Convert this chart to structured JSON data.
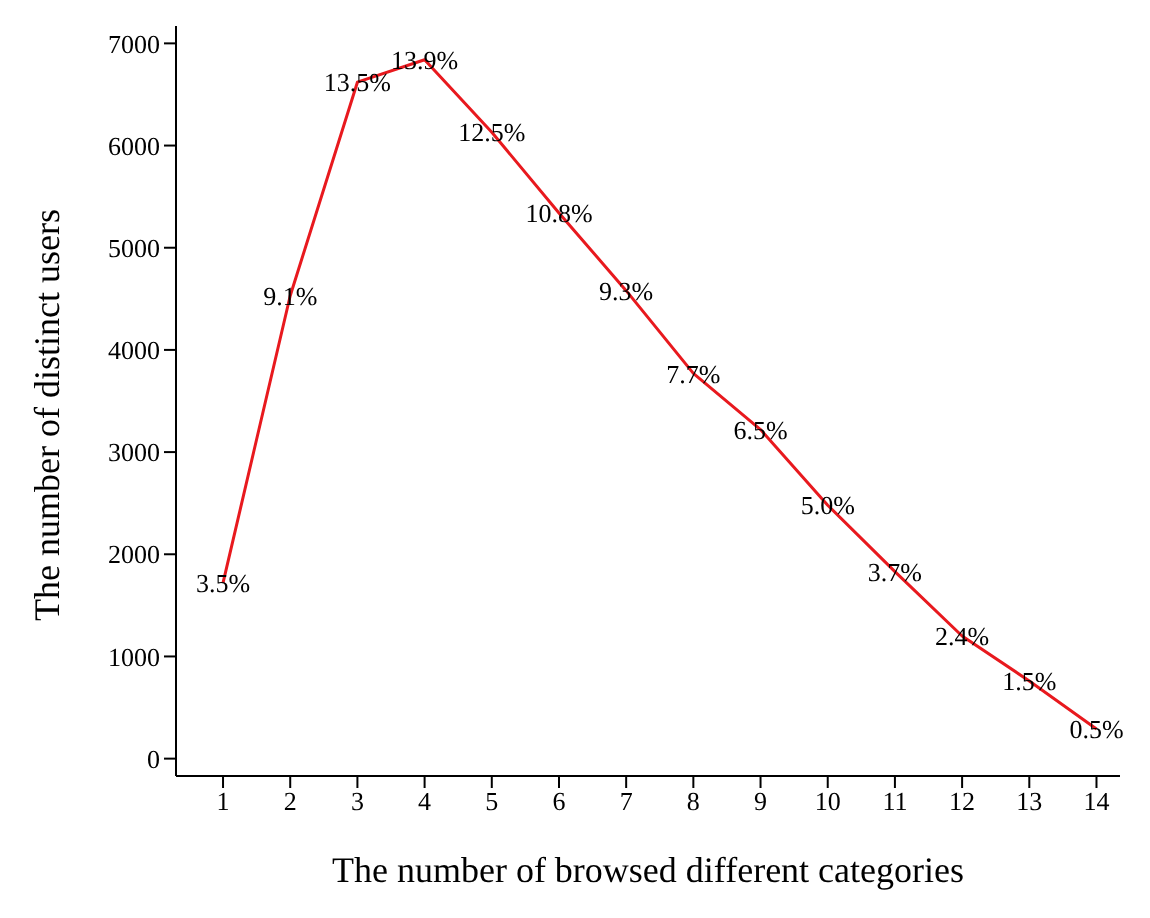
{
  "chart_data": {
    "type": "line",
    "xlabel": "The number of browsed different categories",
    "ylabel": "The number of distinct users",
    "x": [
      1,
      2,
      3,
      4,
      5,
      6,
      7,
      8,
      9,
      10,
      11,
      12,
      13,
      14
    ],
    "series": [
      {
        "color": "#e8191e",
        "values": [
          1720,
          4530,
          6620,
          6840,
          6130,
          5340,
          4580,
          3770,
          3220,
          2480,
          1830,
          1200,
          760,
          290
        ]
      }
    ],
    "xlim": [
      0.3,
      14.35
    ],
    "xticks": [
      1,
      2,
      3,
      4,
      5,
      6,
      7,
      8,
      9,
      10,
      11,
      12,
      13,
      14
    ],
    "ylim": [
      -170,
      7170
    ],
    "yticks": [
      0,
      1000,
      2000,
      3000,
      4000,
      5000,
      6000,
      7000
    ],
    "grid": false,
    "legend": false,
    "marker": "none",
    "line_style": "solid",
    "annotations": [
      {
        "text": "3.5%",
        "x": 1,
        "y": 1720
      },
      {
        "text": "9.1%",
        "x": 2,
        "y": 4530
      },
      {
        "text": "13.5%",
        "x": 3,
        "y": 6620
      },
      {
        "text": "13.9%",
        "x": 4,
        "y": 6840
      },
      {
        "text": "12.5%",
        "x": 5,
        "y": 6130
      },
      {
        "text": "10.8%",
        "x": 6,
        "y": 5340
      },
      {
        "text": "9.3%",
        "x": 7,
        "y": 4580
      },
      {
        "text": "7.7%",
        "x": 8,
        "y": 3770
      },
      {
        "text": "6.5%",
        "x": 9,
        "y": 3220
      },
      {
        "text": "5.0%",
        "x": 10,
        "y": 2480
      },
      {
        "text": "3.7%",
        "x": 11,
        "y": 1830
      },
      {
        "text": "2.4%",
        "x": 12,
        "y": 1200
      },
      {
        "text": "1.5%",
        "x": 13,
        "y": 760
      },
      {
        "text": "0.5%",
        "x": 14,
        "y": 290
      }
    ]
  }
}
